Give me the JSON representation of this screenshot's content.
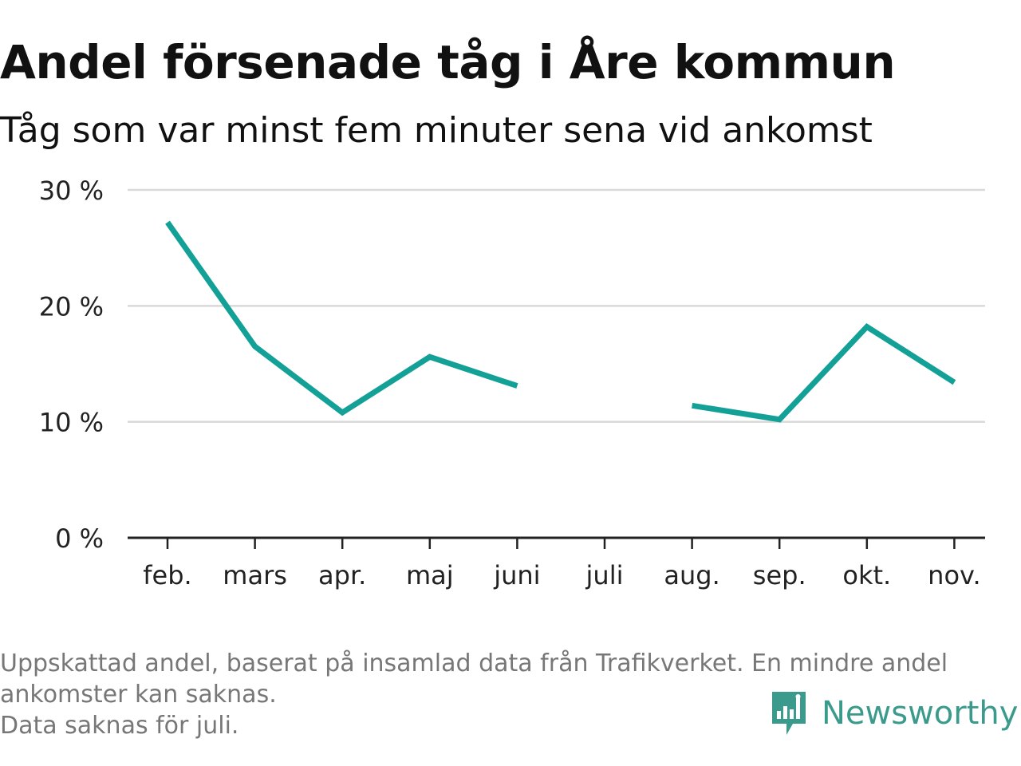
{
  "header": {
    "title": "Andel försenade tåg i Åre kommun",
    "subtitle": "Tåg som var minst fem minuter sena vid ankomst"
  },
  "chart_data": {
    "type": "line",
    "categories": [
      "feb.",
      "mars",
      "apr.",
      "maj",
      "juni",
      "juli",
      "aug.",
      "sep.",
      "okt.",
      "nov."
    ],
    "series": [
      {
        "values": [
          27.2,
          16.5,
          10.8,
          15.6,
          13.1,
          null,
          11.4,
          10.2,
          18.2,
          13.4
        ]
      }
    ],
    "ylim": [
      0,
      30
    ],
    "yticks": [
      0,
      10,
      20,
      30
    ],
    "ytick_labels": [
      "0 %",
      "10 %",
      "20 %",
      "30 %"
    ],
    "grid": true,
    "colors": {
      "line": "#13a197",
      "grid": "#d9d9d9",
      "axis": "#222222"
    }
  },
  "footnote": {
    "lines": [
      "Uppskattad andel, baserat på insamlad data från Trafikverket. En mindre andel",
      "ankomster kan saknas.",
      "Data saknas för juli."
    ]
  },
  "brand": {
    "name": "Newsworthy",
    "icon": "newsworthy-logo-icon",
    "color": "#3a9b8c"
  }
}
